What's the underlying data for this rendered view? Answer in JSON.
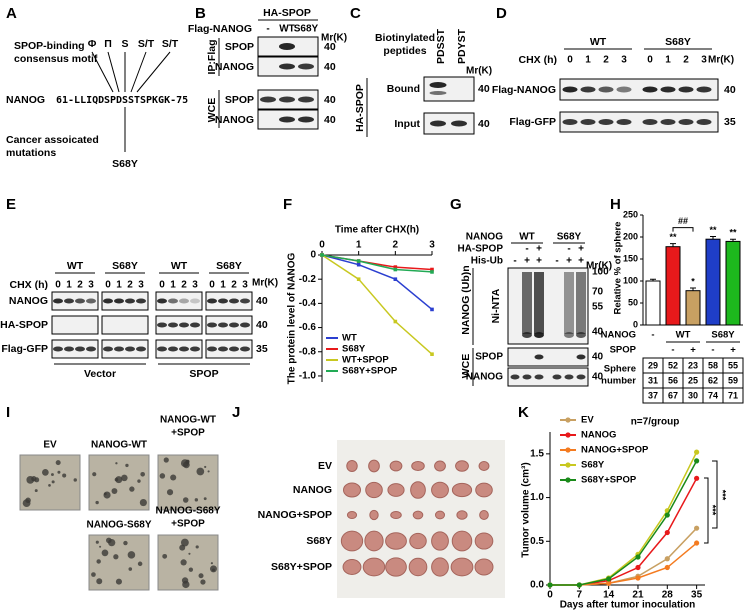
{
  "figure_labels": [
    "A",
    "B",
    "C",
    "D",
    "E",
    "F",
    "G",
    "H",
    "I",
    "J",
    "K"
  ],
  "panels": {
    "a": {
      "motif_title": [
        "SPOP-binding",
        "consensus motif"
      ],
      "motif": [
        "Φ",
        "Π",
        "S",
        "S/T",
        "S/T"
      ],
      "protein": "NANOG",
      "sequence": [
        "61-LLIQD",
        "S",
        "P",
        "D",
        "S",
        "S",
        "T",
        "SPKGK-75"
      ],
      "mutation_title": [
        "Cancer assoicated",
        "mutations"
      ],
      "mutation": "S68Y"
    },
    "b": {
      "construct": "HA-SPOP",
      "lane_title": "Flag-NANOG",
      "lanes": [
        "-",
        "WT",
        "S68Y"
      ],
      "mr": "Mr(K)",
      "groups": [
        "IP:Flag",
        "WCE"
      ],
      "rows": [
        "SPOP",
        "NANOG",
        "SPOP",
        "NANOG"
      ],
      "markers": [
        40,
        40,
        40,
        40
      ]
    },
    "c": {
      "title": [
        "Biotinylated",
        "peptides"
      ],
      "lanes": [
        "PDSST",
        "PDYST"
      ],
      "construct": "HA-SPOP",
      "rows": [
        "Bound",
        "Input"
      ],
      "mr": "Mr(K)",
      "markers": [
        40,
        40
      ]
    },
    "d": {
      "groups": [
        "WT",
        "S68Y"
      ],
      "time_label": "CHX (h)",
      "times": [
        0,
        1,
        2,
        3,
        0,
        1,
        2,
        3
      ],
      "mr": "Mr(K)",
      "rows": [
        "Flag-NANOG",
        "Flag-GFP"
      ],
      "markers": [
        40,
        35
      ]
    },
    "e": {
      "groups": [
        "WT",
        "S68Y",
        "WT",
        "S68Y"
      ],
      "time_label": "CHX (h)",
      "times": [
        0,
        1,
        2,
        3,
        0,
        1,
        2,
        3,
        0,
        1,
        2,
        3,
        0,
        1,
        2,
        3
      ],
      "mr": "Mr(K)",
      "rows": [
        "NANOG",
        "HA-SPOP",
        "Flag-GFP"
      ],
      "markers": [
        40,
        40,
        35
      ],
      "conditions": [
        "Vector",
        "SPOP"
      ]
    },
    "g": {
      "row_labels": [
        "NANOG",
        "HA-SPOP",
        "His-Ub"
      ],
      "groups": [
        "WT",
        "S68Y"
      ],
      "ha_spop": [
        "-",
        "+",
        "-",
        "+"
      ],
      "his_ub": [
        "-",
        "+",
        "+",
        "-",
        "+",
        "+"
      ],
      "mr": "Mr(K)",
      "ni_markers": [
        100,
        70,
        55,
        40
      ],
      "pulldown": "Ni-NTA",
      "readout": "NANOG (Ub)n",
      "wce": "WCE",
      "wce_rows": [
        "SPOP",
        "NANOG"
      ],
      "wce_markers": [
        40,
        40
      ]
    },
    "i": {
      "labels": [
        "EV",
        "NANOG-WT",
        [
          "NANOG-WT",
          "+SPOP"
        ],
        "NANOG-S68Y",
        [
          "NANOG-S68Y",
          "+SPOP"
        ]
      ]
    },
    "j": {
      "labels": [
        "EV",
        "NANOG",
        "NANOG+SPOP",
        "S68Y",
        "S68Y+SPOP"
      ]
    }
  },
  "chart_data": [
    {
      "type": "line",
      "title": "Time after CHX(h)",
      "y_label": "The protein level of NANOG",
      "x_axis": "top",
      "marker": "square",
      "x": [
        0,
        1,
        2,
        3
      ],
      "xlim": [
        0,
        3
      ],
      "xticks": [
        0,
        1,
        2,
        3
      ],
      "ylim": [
        -1.05,
        0
      ],
      "yticks": [
        0,
        -0.2,
        -0.4,
        -0.6,
        -0.8,
        {
          "value": -1,
          "label": "-1.0"
        }
      ],
      "legend": "lower left",
      "series": [
        {
          "name": "WT",
          "color": "#2b3fd0",
          "values": [
            0,
            -0.08,
            -0.2,
            -0.45
          ]
        },
        {
          "name": "S68Y",
          "color": "#e8191b",
          "values": [
            0,
            -0.05,
            -0.1,
            -0.12
          ]
        },
        {
          "name": "WT+SPOP",
          "color": "#c8c820",
          "values": [
            0,
            -0.2,
            -0.55,
            -0.82
          ]
        },
        {
          "name": "S68Y+SPOP",
          "color": "#22aa55",
          "values": [
            0,
            -0.05,
            -0.12,
            -0.14
          ]
        }
      ]
    },
    {
      "type": "bar",
      "y_label": "Relative % of sphere",
      "categories": [
        null,
        null,
        null,
        null,
        null
      ],
      "values": [
        100,
        178,
        78,
        195,
        190
      ],
      "errors": [
        4,
        7,
        6,
        6,
        5
      ],
      "colors": [
        "#ffffff",
        "#e8191b",
        "#c8a062",
        "#1f3ec8",
        "#1db81d"
      ],
      "annotations": [
        null,
        "**",
        "*",
        "**",
        "**"
      ],
      "bracket_annotation": "##",
      "ylim": [
        0,
        250
      ],
      "yticks": [
        0,
        50,
        100,
        150,
        200,
        250
      ],
      "row_labels": [
        "NANOG",
        "SPOP"
      ],
      "nanog_row": [
        "-",
        "WT",
        "S68Y"
      ],
      "spop_row": [
        "-",
        "+",
        "-",
        "+"
      ],
      "table_label": [
        "Sphere",
        "number"
      ],
      "table": [
        [
          29,
          52,
          23,
          58,
          55
        ],
        [
          31,
          56,
          25,
          62,
          59
        ],
        [
          37,
          67,
          30,
          74,
          71
        ]
      ]
    },
    {
      "type": "line",
      "y_label": "Tumor volume (cm³)",
      "x_label": "Days after tumor inoculation",
      "marker": "circle",
      "annotation": "n=7/group",
      "significance": [
        "***",
        "***"
      ],
      "x": [
        0,
        7,
        14,
        21,
        28,
        35
      ],
      "xlim": [
        0,
        37
      ],
      "xticks": [
        0,
        7,
        14,
        21,
        28,
        35
      ],
      "ylim": [
        0,
        1.75
      ],
      "yticks": [
        {
          "value": 0,
          "label": "0.0"
        },
        0.5,
        {
          "value": 1,
          "label": "1.0"
        },
        1.5
      ],
      "legend": "upper left",
      "series": [
        {
          "name": "EV",
          "color": "#c8a062",
          "values": [
            0,
            0,
            0.02,
            0.1,
            0.3,
            0.65
          ]
        },
        {
          "name": "NANOG",
          "color": "#e8191b",
          "values": [
            0,
            0,
            0.05,
            0.2,
            0.6,
            1.22
          ]
        },
        {
          "name": "NANOG+SPOP",
          "color": "#f47b20",
          "values": [
            0,
            0,
            0.02,
            0.08,
            0.2,
            0.48
          ]
        },
        {
          "name": "S68Y",
          "color": "#c8c820",
          "values": [
            0,
            0,
            0.08,
            0.35,
            0.85,
            1.52
          ]
        },
        {
          "name": "S68Y+SPOP",
          "color": "#1a8a1a",
          "values": [
            0,
            0,
            0.07,
            0.32,
            0.8,
            1.42
          ]
        }
      ]
    }
  ]
}
